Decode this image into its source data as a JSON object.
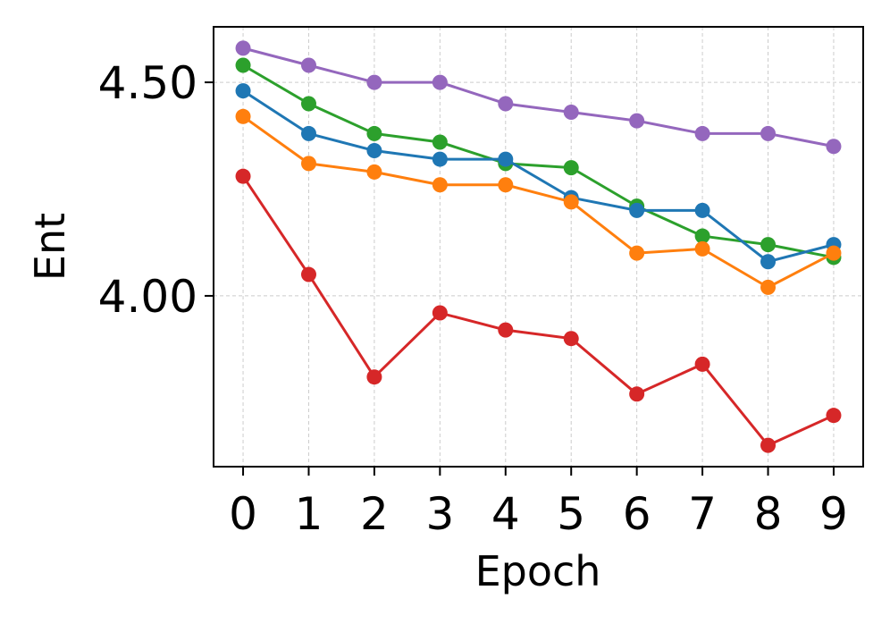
{
  "chart_data": {
    "type": "line",
    "title": "",
    "xlabel": "Epoch",
    "ylabel": "Ent",
    "x": [
      0,
      1,
      2,
      3,
      4,
      5,
      6,
      7,
      8,
      9
    ],
    "xlim": [
      -0.45,
      9.45
    ],
    "ylim": [
      3.6,
      4.63
    ],
    "yticks": [
      4.0,
      4.5
    ],
    "ytick_labels": [
      "4.00",
      "4.50"
    ],
    "grid": true,
    "legend": "none",
    "series": [
      {
        "color": "#9467bd",
        "values": [
          4.58,
          4.54,
          4.5,
          4.5,
          4.45,
          4.43,
          4.41,
          4.38,
          4.38,
          4.35
        ]
      },
      {
        "color": "#2ca02c",
        "values": [
          4.54,
          4.45,
          4.38,
          4.36,
          4.31,
          4.3,
          4.21,
          4.14,
          4.12,
          4.09
        ]
      },
      {
        "color": "#1f77b4",
        "values": [
          4.48,
          4.38,
          4.34,
          4.32,
          4.32,
          4.23,
          4.2,
          4.2,
          4.08,
          4.12
        ]
      },
      {
        "color": "#ff7f0e",
        "values": [
          4.42,
          4.31,
          4.29,
          4.26,
          4.26,
          4.22,
          4.1,
          4.11,
          4.02,
          4.1
        ]
      },
      {
        "color": "#d62728",
        "values": [
          4.28,
          4.05,
          3.81,
          3.96,
          3.92,
          3.9,
          3.77,
          3.84,
          3.65,
          3.72
        ]
      }
    ]
  }
}
